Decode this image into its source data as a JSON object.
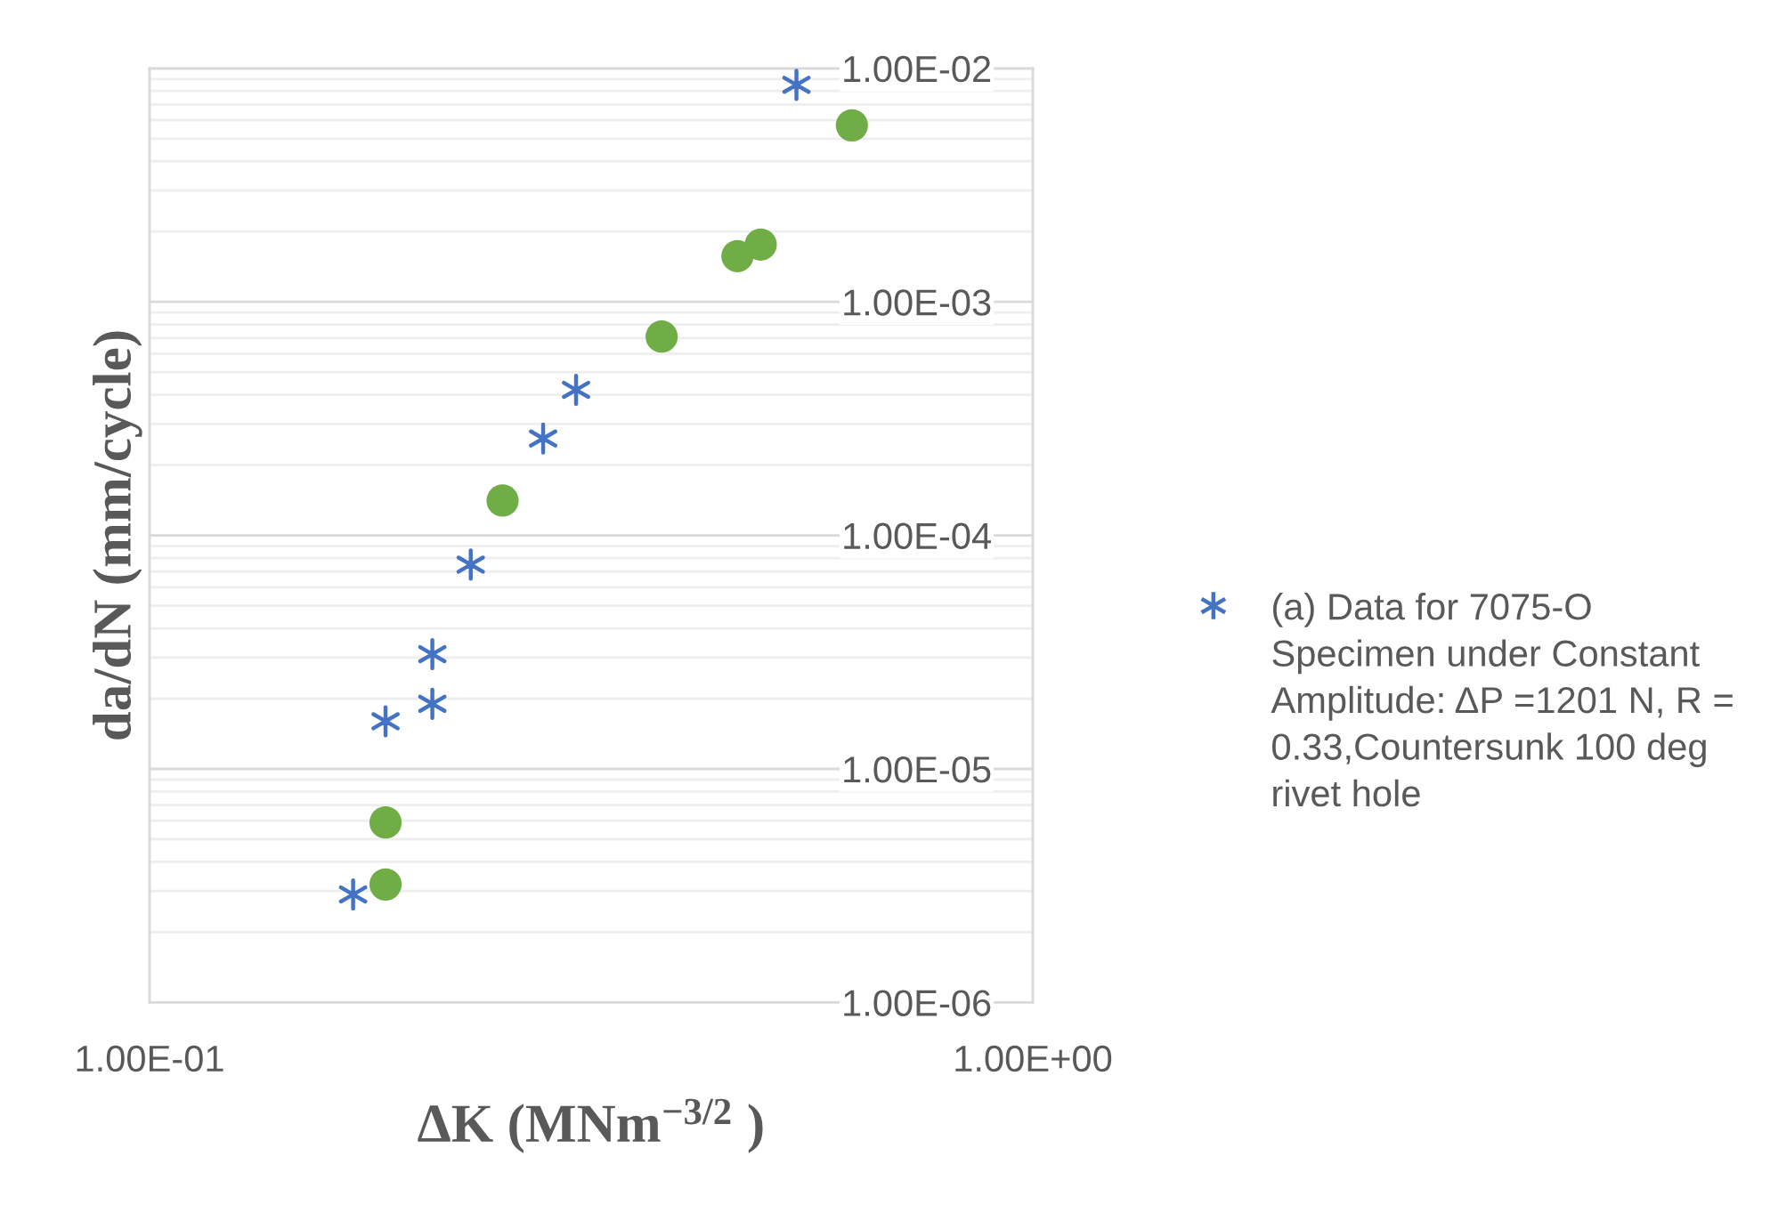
{
  "chart_data": {
    "type": "scatter",
    "xlabel": "ΔK (MNm$^{−3/2}$ )",
    "ylabel": "da/dN (mm/cycle)",
    "log": "xy",
    "xlim": [
      0.1,
      1
    ],
    "ylim": [
      1e-06,
      0.01
    ],
    "xticks": [
      {
        "value": 0.1,
        "label": "1.00E-01"
      },
      {
        "value": 1,
        "label": "1.00E+00"
      }
    ],
    "yticks": [
      {
        "value": 1e-06,
        "label": "1.00E-06"
      },
      {
        "value": 2e-06,
        "label": null
      },
      {
        "value": 3e-06,
        "label": null
      },
      {
        "value": 4e-06,
        "label": null
      },
      {
        "value": 5e-06,
        "label": null
      },
      {
        "value": 6e-06,
        "label": null
      },
      {
        "value": 7e-06,
        "label": null
      },
      {
        "value": 8e-06,
        "label": null
      },
      {
        "value": 9e-06,
        "label": null
      },
      {
        "value": 1e-05,
        "label": "1.00E-05"
      },
      {
        "value": 2e-05,
        "label": null
      },
      {
        "value": 3e-05,
        "label": null
      },
      {
        "value": 4e-05,
        "label": null
      },
      {
        "value": 5e-05,
        "label": null
      },
      {
        "value": 6e-05,
        "label": null
      },
      {
        "value": 7e-05,
        "label": null
      },
      {
        "value": 8e-05,
        "label": null
      },
      {
        "value": 9e-05,
        "label": null
      },
      {
        "value": 0.0001,
        "label": "1.00E-04"
      },
      {
        "value": 0.0002,
        "label": null
      },
      {
        "value": 0.0003,
        "label": null
      },
      {
        "value": 0.0004,
        "label": null
      },
      {
        "value": 0.0005,
        "label": null
      },
      {
        "value": 0.0006,
        "label": null
      },
      {
        "value": 0.0007,
        "label": null
      },
      {
        "value": 0.0008,
        "label": null
      },
      {
        "value": 0.0009,
        "label": null
      },
      {
        "value": 0.001,
        "label": "1.00E-03"
      },
      {
        "value": 0.002,
        "label": null
      },
      {
        "value": 0.003,
        "label": null
      },
      {
        "value": 0.004,
        "label": null
      },
      {
        "value": 0.005,
        "label": null
      },
      {
        "value": 0.006,
        "label": null
      },
      {
        "value": 0.007,
        "label": null
      },
      {
        "value": 0.008,
        "label": null
      },
      {
        "value": 0.009,
        "label": null
      },
      {
        "value": 0.01,
        "label": "1.00E-02"
      }
    ],
    "grid": "y",
    "legend": "right",
    "series": [
      {
        "name": "(a) Data for 7075-O Specimen under Constant Amplitude: ΔP =1201 N, R = 0.33,Countersunk 100 deg rivet hole",
        "color": "#4472c4",
        "marker": "cross",
        "x": [
          0.54,
          0.304,
          0.279,
          0.231,
          0.209,
          0.209,
          0.185,
          0.17
        ],
        "values": [
          0.0085,
          0.00042,
          0.00026,
          7.5e-05,
          3.1e-05,
          1.9e-05,
          1.6e-05,
          2.9e-06
        ]
      },
      {
        "color": "#70ad47",
        "marker": "circle",
        "x": [
          0.624,
          0.492,
          0.463,
          0.38,
          0.251,
          0.185,
          0.185
        ],
        "values": [
          0.0057,
          0.00176,
          0.00157,
          0.00071,
          0.000141,
          5.9e-06,
          3.2e-06
        ]
      }
    ]
  }
}
